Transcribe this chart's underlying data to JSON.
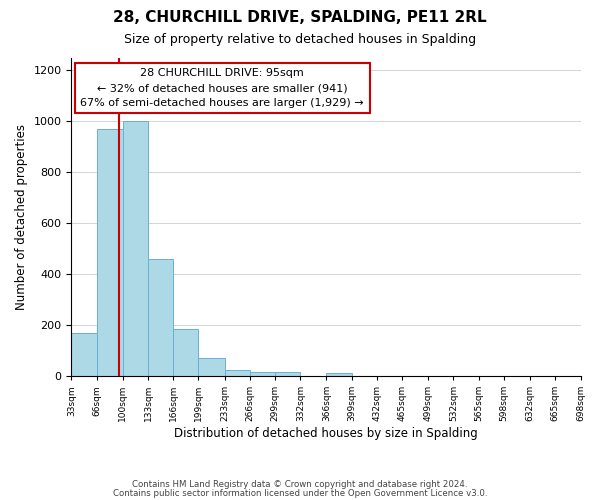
{
  "title": "28, CHURCHILL DRIVE, SPALDING, PE11 2RL",
  "subtitle": "Size of property relative to detached houses in Spalding",
  "xlabel": "Distribution of detached houses by size in Spalding",
  "ylabel": "Number of detached properties",
  "footnote1": "Contains HM Land Registry data © Crown copyright and database right 2024.",
  "footnote2": "Contains public sector information licensed under the Open Government Licence v3.0.",
  "bar_left_edges": [
    33,
    66,
    100,
    133,
    166,
    199,
    233,
    266,
    299,
    332,
    366,
    399,
    432,
    465,
    499,
    532,
    565,
    598,
    632,
    665
  ],
  "bar_right_edges": [
    66,
    100,
    133,
    166,
    199,
    233,
    266,
    299,
    332,
    366,
    399,
    432,
    465,
    499,
    532,
    565,
    598,
    632,
    665,
    698
  ],
  "bar_heights": [
    170,
    970,
    1000,
    460,
    185,
    72,
    25,
    15,
    15,
    0,
    10,
    0,
    0,
    0,
    0,
    0,
    0,
    0,
    0,
    0
  ],
  "bar_color": "#add8e6",
  "bar_edge_color": "#6ab0d4",
  "property_line_x": 95,
  "annotation_title": "28 CHURCHILL DRIVE: 95sqm",
  "annotation_line1": "← 32% of detached houses are smaller (941)",
  "annotation_line2": "67% of semi-detached houses are larger (1,929) →",
  "annotation_box_color": "#ffffff",
  "annotation_box_edgecolor": "#cc0000",
  "property_line_color": "#cc0000",
  "ylim": [
    0,
    1250
  ],
  "yticks": [
    0,
    200,
    400,
    600,
    800,
    1000,
    1200
  ],
  "tick_positions": [
    33,
    66,
    100,
    133,
    166,
    199,
    233,
    266,
    299,
    332,
    366,
    399,
    432,
    465,
    499,
    532,
    565,
    598,
    632,
    665,
    698
  ],
  "tick_labels": [
    "33sqm",
    "66sqm",
    "100sqm",
    "133sqm",
    "166sqm",
    "199sqm",
    "233sqm",
    "266sqm",
    "299sqm",
    "332sqm",
    "366sqm",
    "399sqm",
    "432sqm",
    "465sqm",
    "499sqm",
    "532sqm",
    "565sqm",
    "598sqm",
    "632sqm",
    "665sqm",
    "698sqm"
  ],
  "xlim": [
    33,
    698
  ]
}
